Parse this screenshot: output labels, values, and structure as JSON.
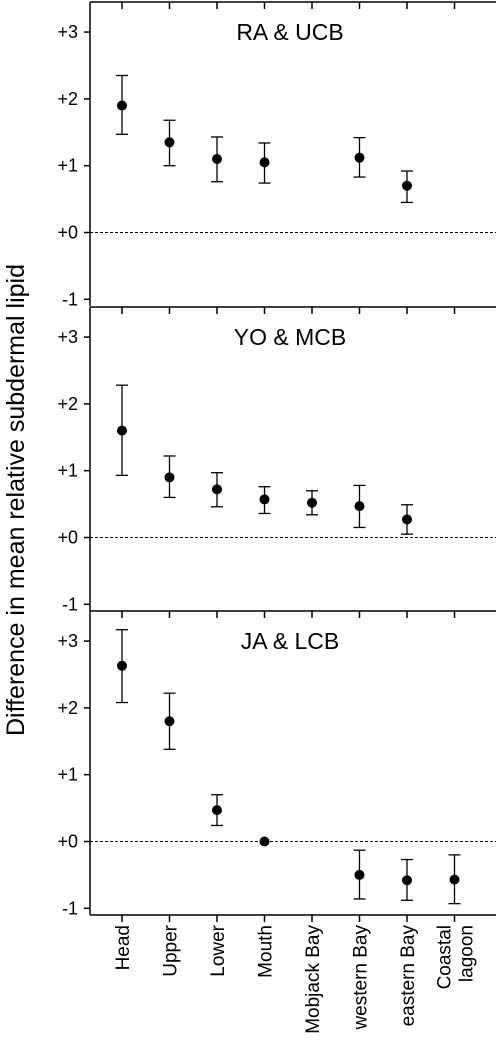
{
  "chart_data": {
    "type": "scatter",
    "ylabel": "Difference in mean relative subdermal lipid",
    "y_tick_labels": [
      "-1",
      "+0",
      "+1",
      "+2",
      "+3"
    ],
    "y_tick_values": [
      -1,
      0,
      1,
      2,
      3
    ],
    "ylim": [
      -1.1,
      3.45
    ],
    "reference_line": 0,
    "categories": [
      "Head",
      "Upper",
      "Lower",
      "Mouth",
      "Mobjack Bay",
      "western Bay",
      "eastern Bay",
      "Coastal\nlagoon"
    ],
    "category_labels": [
      [
        "Head"
      ],
      [
        "Upper"
      ],
      [
        "Lower"
      ],
      [
        "Mouth"
      ],
      [
        "Mobjack Bay"
      ],
      [
        "western Bay"
      ],
      [
        "eastern Bay"
      ],
      [
        "Coastal",
        "lagoon"
      ]
    ],
    "panels": [
      {
        "title": "RA & UCB",
        "points": [
          {
            "category": "Head",
            "mean": 1.9,
            "lower": 1.47,
            "upper": 2.35
          },
          {
            "category": "Upper",
            "mean": 1.35,
            "lower": 1.0,
            "upper": 1.68
          },
          {
            "category": "Lower",
            "mean": 1.1,
            "lower": 0.76,
            "upper": 1.43
          },
          {
            "category": "Mouth",
            "mean": 1.05,
            "lower": 0.74,
            "upper": 1.34
          },
          {
            "category": "western Bay",
            "mean": 1.12,
            "lower": 0.83,
            "upper": 1.42
          },
          {
            "category": "eastern Bay",
            "mean": 0.7,
            "lower": 0.45,
            "upper": 0.92
          }
        ]
      },
      {
        "title": "YO & MCB",
        "points": [
          {
            "category": "Head",
            "mean": 1.6,
            "lower": 0.93,
            "upper": 2.28
          },
          {
            "category": "Upper",
            "mean": 0.9,
            "lower": 0.6,
            "upper": 1.22
          },
          {
            "category": "Lower",
            "mean": 0.72,
            "lower": 0.46,
            "upper": 0.97
          },
          {
            "category": "Mouth",
            "mean": 0.57,
            "lower": 0.36,
            "upper": 0.76
          },
          {
            "category": "Mobjack Bay",
            "mean": 0.52,
            "lower": 0.34,
            "upper": 0.7
          },
          {
            "category": "western Bay",
            "mean": 0.47,
            "lower": 0.15,
            "upper": 0.78
          },
          {
            "category": "eastern Bay",
            "mean": 0.27,
            "lower": 0.05,
            "upper": 0.49
          }
        ]
      },
      {
        "title": "JA & LCB",
        "points": [
          {
            "category": "Head",
            "mean": 2.63,
            "lower": 2.08,
            "upper": 3.17
          },
          {
            "category": "Upper",
            "mean": 1.8,
            "lower": 1.38,
            "upper": 2.22
          },
          {
            "category": "Lower",
            "mean": 0.47,
            "lower": 0.24,
            "upper": 0.7
          },
          {
            "category": "Mouth",
            "mean": 0.0,
            "lower": 0.0,
            "upper": 0.0
          },
          {
            "category": "western Bay",
            "mean": -0.5,
            "lower": -0.86,
            "upper": -0.13
          },
          {
            "category": "eastern Bay",
            "mean": -0.58,
            "lower": -0.88,
            "upper": -0.27
          },
          {
            "category": "Coastal\nlagoon",
            "mean": -0.57,
            "lower": -0.93,
            "upper": -0.2
          }
        ]
      }
    ],
    "grid": false,
    "colors": {
      "marker": "#000000",
      "axis": "#000000",
      "reference": "#000000"
    }
  }
}
